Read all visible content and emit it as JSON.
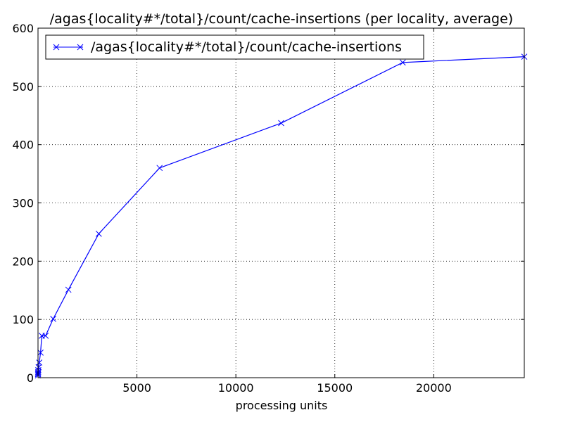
{
  "chart_data": {
    "type": "line",
    "title": "/agas{locality#*/total}/count/cache-insertions (per locality, average)",
    "xlabel": "processing units",
    "ylabel": "",
    "xlim": [
      0,
      24576
    ],
    "ylim": [
      0,
      600
    ],
    "xticks": [
      5000,
      10000,
      15000,
      20000
    ],
    "yticks": [
      0,
      100,
      200,
      300,
      400,
      500,
      600
    ],
    "grid": true,
    "legend": "top-left",
    "series": [
      {
        "name": "/agas{locality#*/total}/count/cache-insertions",
        "color": "#0000ff",
        "marker": "x",
        "x": [
          1,
          2,
          4,
          8,
          16,
          32,
          64,
          128,
          192,
          384,
          768,
          1536,
          3072,
          6144,
          12288,
          18432,
          24576
        ],
        "y": [
          4,
          6,
          8,
          10,
          13,
          18,
          26,
          43,
          72,
          72,
          101,
          151,
          247,
          360,
          437,
          541,
          551
        ]
      }
    ]
  }
}
